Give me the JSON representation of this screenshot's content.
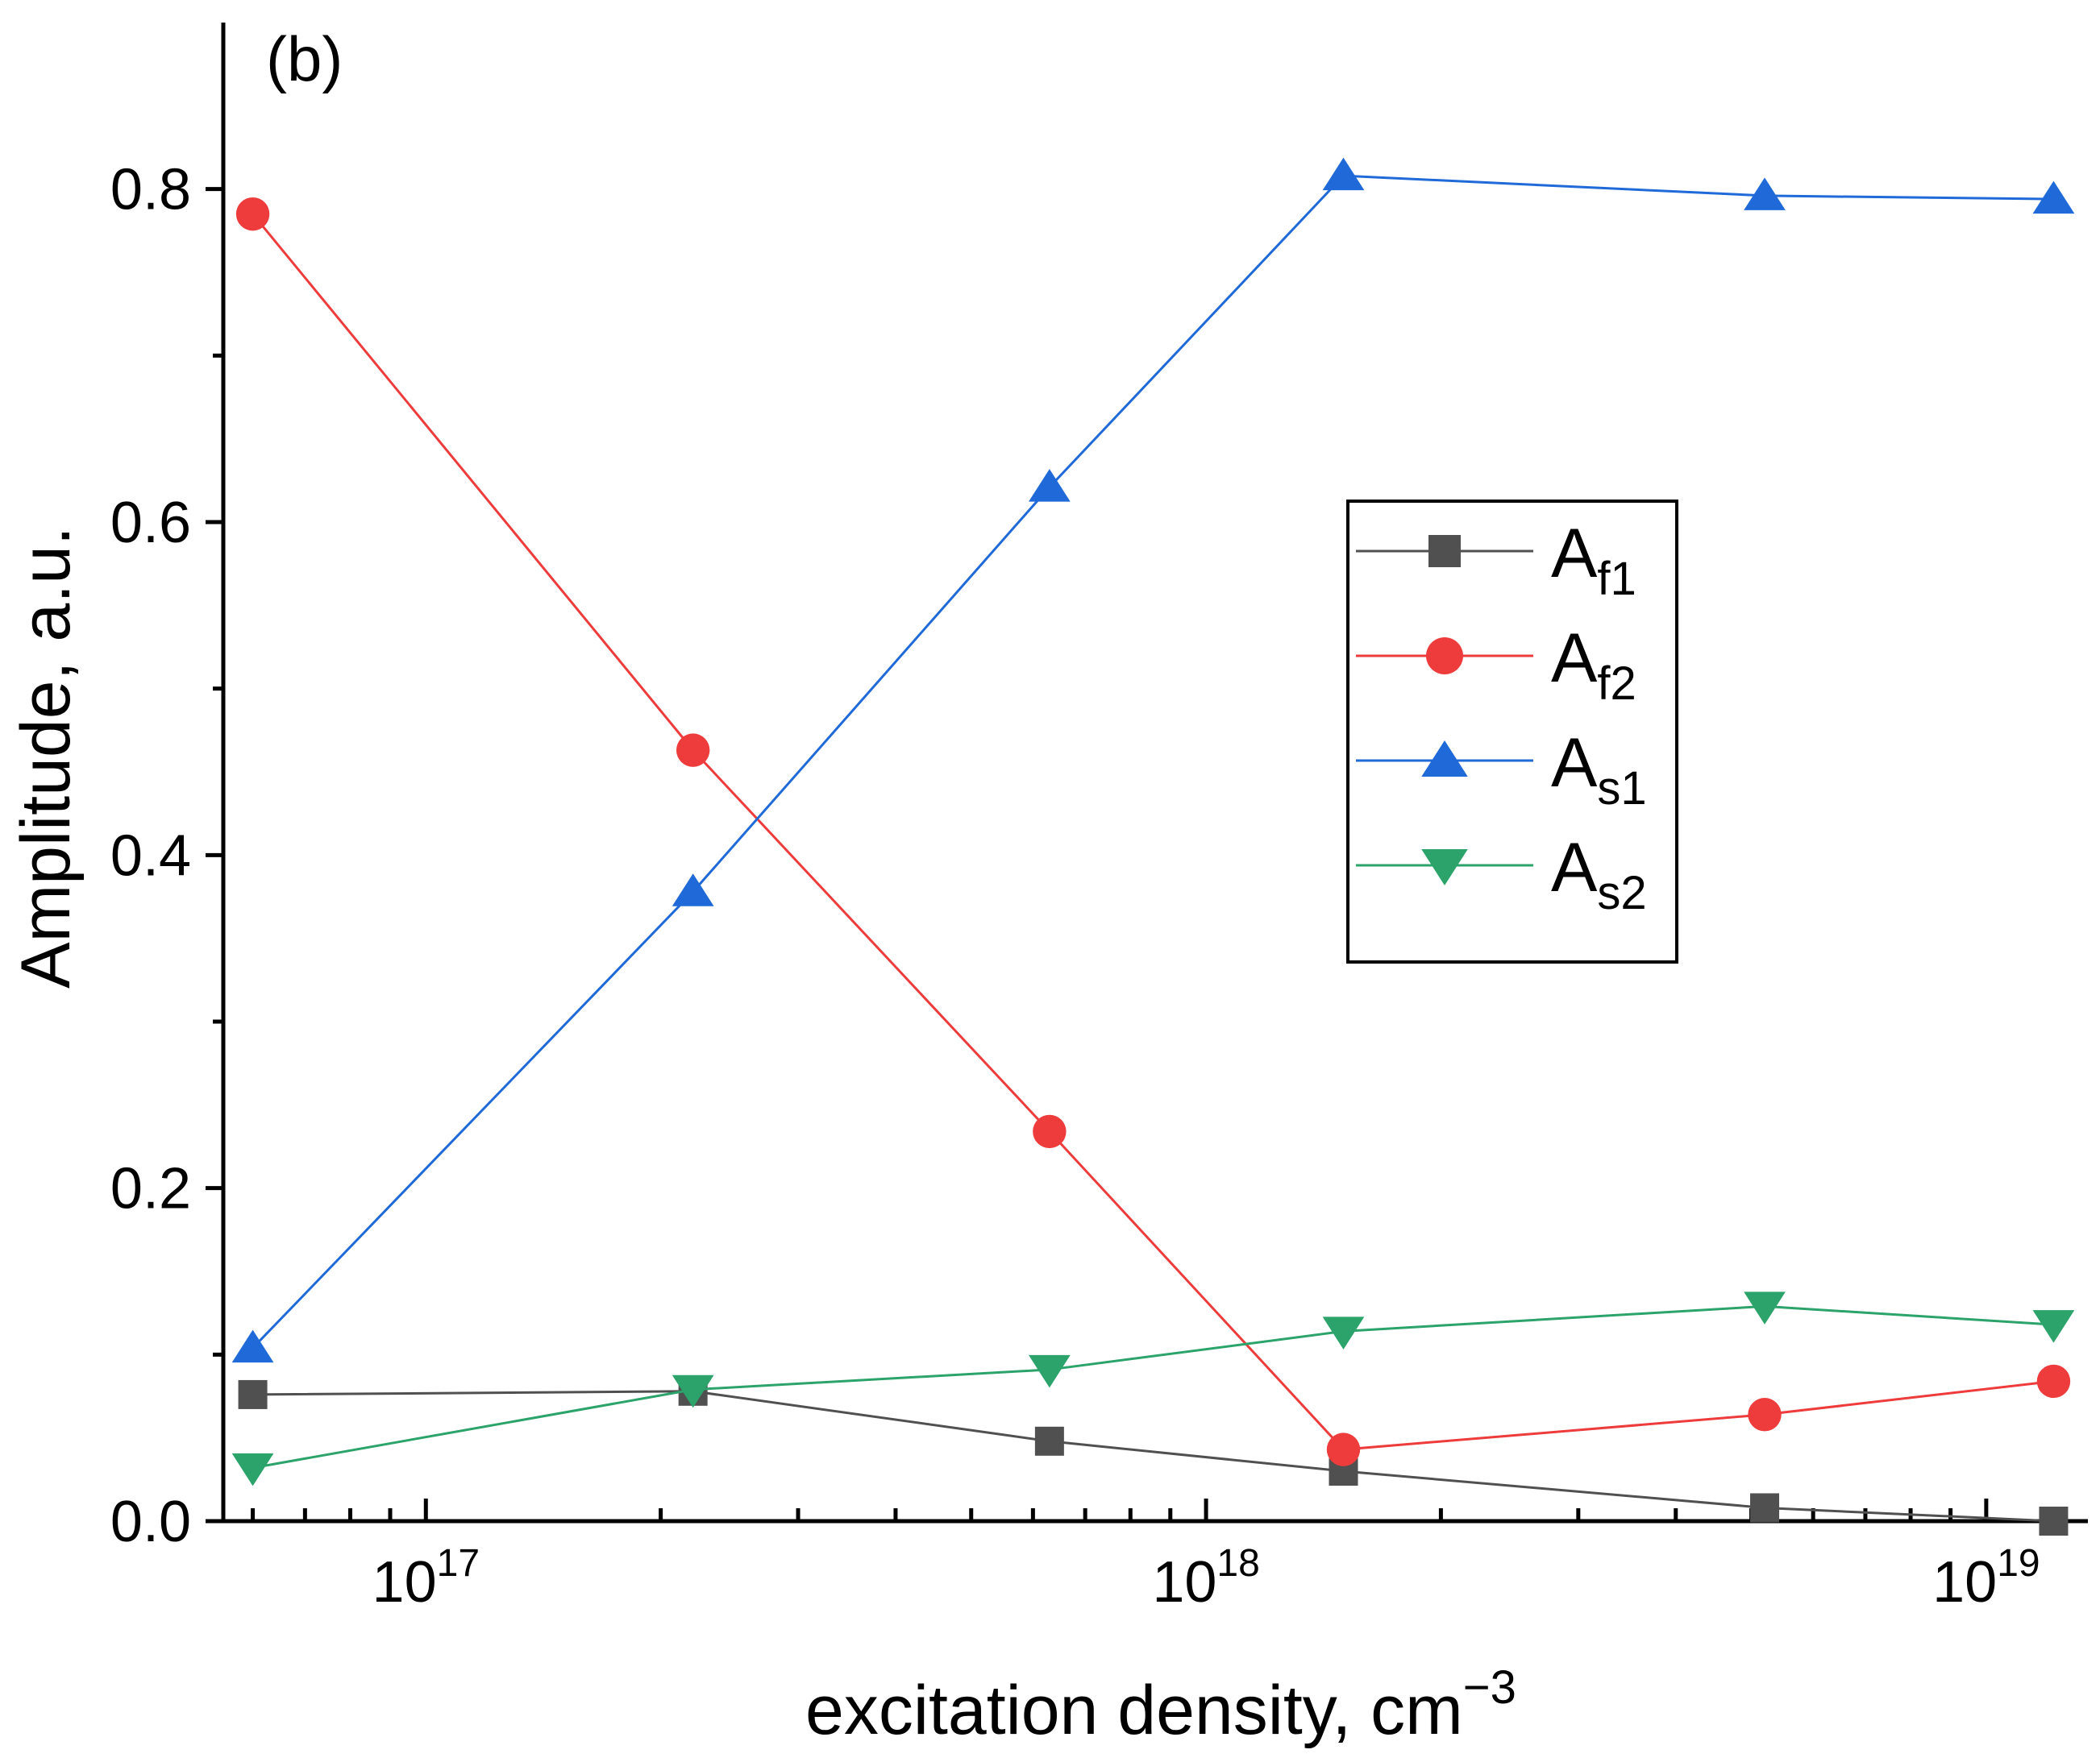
{
  "chart_data": {
    "type": "line",
    "panel_label": "(b)",
    "xlabel": "excitation density, cm",
    "xlabel_exponent": "−3",
    "ylabel": "Amplitude, a.u.",
    "x_scale": "log",
    "x_range": [
      5.5e+16,
      1.35e+19
    ],
    "ylim": [
      0,
      0.9
    ],
    "y_ticks": [
      {
        "value": 0.0,
        "label": "0.0"
      },
      {
        "value": 0.2,
        "label": "0.2"
      },
      {
        "value": 0.4,
        "label": "0.4"
      },
      {
        "value": 0.6,
        "label": "0.6"
      },
      {
        "value": 0.8,
        "label": "0.8"
      }
    ],
    "y_minor_ticks": [
      0.1,
      0.3,
      0.5,
      0.7
    ],
    "x_ticks": [
      {
        "value": 1e+17,
        "base": "10",
        "exp": "17"
      },
      {
        "value": 1e+18,
        "base": "10",
        "exp": "18"
      },
      {
        "value": 1e+19,
        "base": "10",
        "exp": "19"
      }
    ],
    "x": [
      6e+16,
      2.2e+17,
      6.3e+17,
      1.5e+18,
      5.2e+18,
      1.22e+19
    ],
    "series": [
      {
        "name": "A",
        "sub": "f1",
        "color": "#505050",
        "marker": "square",
        "values": [
          0.076,
          0.078,
          0.048,
          0.03,
          0.008,
          0.0
        ]
      },
      {
        "name": "A",
        "sub": "f2",
        "color": "#ee3b3b",
        "marker": "circle",
        "values": [
          0.785,
          0.463,
          0.234,
          0.043,
          0.064,
          0.084
        ]
      },
      {
        "name": "A",
        "sub": "s1",
        "color": "#1f6ad8",
        "marker": "triangle-up",
        "values": [
          0.104,
          0.378,
          0.621,
          0.808,
          0.796,
          0.794
        ]
      },
      {
        "name": "A",
        "sub": "s2",
        "color": "#2ca36a",
        "marker": "triangle-down",
        "values": [
          0.032,
          0.079,
          0.091,
          0.114,
          0.129,
          0.118
        ]
      }
    ],
    "legend_position": "center-right"
  }
}
